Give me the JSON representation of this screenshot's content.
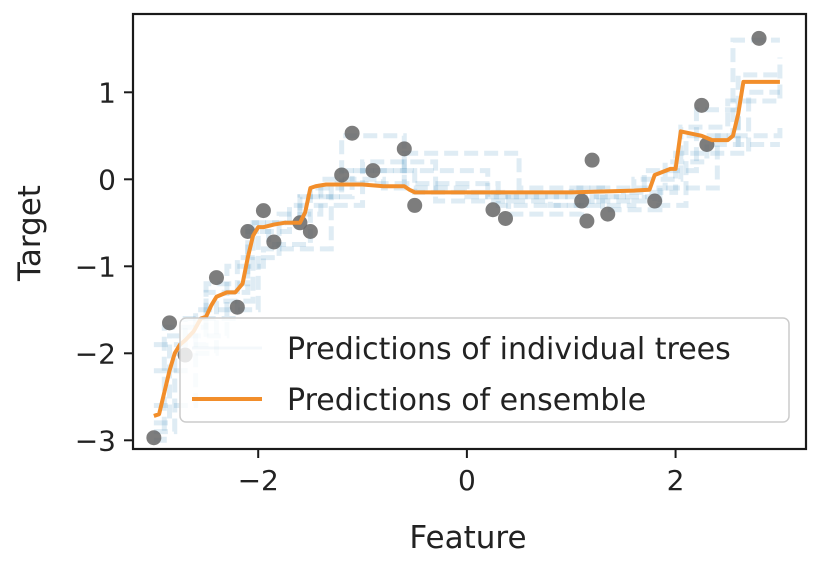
{
  "chart_data": {
    "type": "line",
    "title": "",
    "xlabel": "Feature",
    "ylabel": "Target",
    "xlim": [
      -3.2,
      3.25
    ],
    "ylim": [
      -3.1,
      1.9
    ],
    "x_ticks": [
      -2,
      0,
      2
    ],
    "x_tick_labels": [
      "−2",
      "0",
      "2"
    ],
    "y_ticks": [
      1,
      0,
      -1,
      -2,
      -3
    ],
    "y_tick_labels": [
      "1",
      "0",
      "−1",
      "−2",
      "−3"
    ],
    "grid": false,
    "legend": {
      "placement": "lower-right",
      "entries": [
        "Predictions of individual trees",
        "Predictions of ensemble"
      ]
    },
    "colors": {
      "points": "#666666",
      "trees": "#1f77b4",
      "ensemble": "#f28e2b"
    },
    "series": [
      {
        "name": "Predictions of individual trees",
        "kind": "step-lines",
        "lines": [
          {
            "x": [
              -3,
              -2.9,
              -2.5,
              -2.1,
              -1.9,
              -1.5,
              -1.2,
              -0.6,
              0.3,
              1.2,
              1.8,
              2.1,
              2.55,
              3
            ],
            "y": [
              -3.0,
              -1.7,
              -1.2,
              -0.6,
              -0.75,
              -0.1,
              0.5,
              -0.05,
              -0.3,
              -0.2,
              -0.3,
              0.5,
              1.6,
              1.6
            ]
          },
          {
            "x": [
              -3,
              -2.8,
              -2.4,
              -2.05,
              -1.6,
              -1.1,
              -0.5,
              0.4,
              1.1,
              1.7,
              2.2,
              2.6,
              3
            ],
            "y": [
              -2.9,
              -2.0,
              -1.4,
              -0.5,
              -0.2,
              0.1,
              -0.15,
              -0.4,
              -0.25,
              0.1,
              0.8,
              0.4,
              0.4
            ]
          },
          {
            "x": [
              -3,
              -2.7,
              -2.2,
              -1.8,
              -1.4,
              -0.8,
              0.0,
              1.0,
              1.9,
              2.3,
              2.6,
              3
            ],
            "y": [
              -2.2,
              -1.6,
              -0.9,
              -0.4,
              0.0,
              -0.1,
              -0.2,
              -0.1,
              0.2,
              0.4,
              1.2,
              1.2
            ]
          },
          {
            "x": [
              -3,
              -2.6,
              -2.0,
              -1.7,
              -1.0,
              -0.3,
              0.8,
              1.6,
              2.05,
              2.5,
              3
            ],
            "y": [
              -2.6,
              -1.5,
              -0.6,
              -0.3,
              0.2,
              -0.25,
              -0.3,
              0.0,
              0.6,
              0.9,
              1.4
            ]
          },
          {
            "x": [
              -3,
              -2.85,
              -2.3,
              -1.95,
              -1.3,
              -0.6,
              0.5,
              1.3,
              1.85,
              2.4,
              3
            ],
            "y": [
              -2.8,
              -1.8,
              -1.0,
              -0.8,
              -0.05,
              0.3,
              -0.1,
              -0.35,
              -0.1,
              0.5,
              0.6
            ]
          },
          {
            "x": [
              -3,
              -2.5,
              -2.1,
              -1.6,
              -1.2,
              0.2,
              1.5,
              2.0,
              2.7,
              3
            ],
            "y": [
              -1.9,
              -1.3,
              -0.5,
              -0.2,
              0.1,
              -0.2,
              -0.15,
              0.3,
              1.0,
              1.0
            ]
          }
        ]
      },
      {
        "name": "Predictions of ensemble",
        "kind": "line",
        "x": [
          -3,
          -2.95,
          -2.9,
          -2.85,
          -2.8,
          -2.75,
          -2.7,
          -2.62,
          -2.55,
          -2.5,
          -2.45,
          -2.4,
          -2.3,
          -2.22,
          -2.15,
          -2.1,
          -2.05,
          -2.0,
          -1.95,
          -1.85,
          -1.75,
          -1.7,
          -1.6,
          -1.55,
          -1.5,
          -1.45,
          -1.35,
          -1.2,
          -1.0,
          -0.8,
          -0.6,
          -0.55,
          -0.5,
          0.0,
          0.5,
          1.0,
          1.3,
          1.6,
          1.75,
          1.8,
          1.95,
          2.0,
          2.05,
          2.25,
          2.35,
          2.5,
          2.55,
          2.6,
          2.65,
          3.0
        ],
        "y": [
          -2.72,
          -2.7,
          -2.45,
          -2.2,
          -2.0,
          -1.9,
          -1.85,
          -1.75,
          -1.6,
          -1.58,
          -1.45,
          -1.35,
          -1.3,
          -1.3,
          -1.2,
          -0.9,
          -0.65,
          -0.55,
          -0.55,
          -0.52,
          -0.5,
          -0.5,
          -0.5,
          -0.38,
          -0.1,
          -0.08,
          -0.06,
          -0.06,
          -0.06,
          -0.08,
          -0.08,
          -0.12,
          -0.15,
          -0.15,
          -0.15,
          -0.15,
          -0.14,
          -0.13,
          -0.12,
          0.05,
          0.12,
          0.12,
          0.55,
          0.5,
          0.45,
          0.45,
          0.5,
          0.75,
          1.12,
          1.12
        ]
      },
      {
        "name": "",
        "kind": "scatter",
        "x": [
          -3.0,
          -2.85,
          -2.7,
          -2.4,
          -2.2,
          -2.1,
          -1.95,
          -1.85,
          -1.6,
          -1.5,
          -1.2,
          -1.1,
          -0.9,
          -0.6,
          -0.5,
          0.25,
          0.37,
          1.1,
          1.15,
          1.2,
          1.35,
          1.8,
          2.25,
          2.3,
          2.8
        ],
        "y": [
          -2.97,
          -1.65,
          -2.02,
          -1.13,
          -1.47,
          -0.6,
          -0.36,
          -0.72,
          -0.5,
          -0.6,
          0.05,
          0.53,
          0.1,
          0.35,
          -0.3,
          -0.35,
          -0.45,
          -0.25,
          -0.48,
          0.22,
          -0.4,
          -0.25,
          0.85,
          0.4,
          1.62
        ]
      }
    ]
  }
}
